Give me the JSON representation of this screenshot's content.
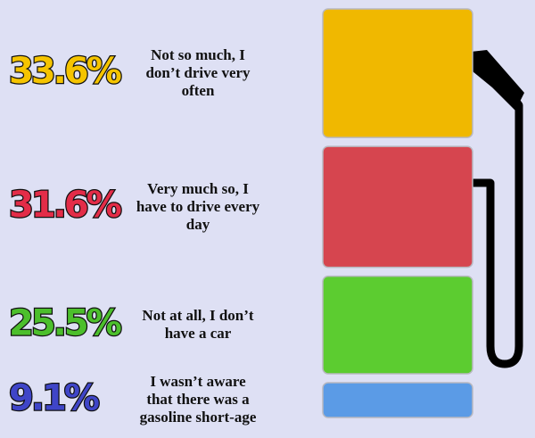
{
  "chart_data": {
    "type": "bar",
    "categories": [
      "Not so much, I don’t drive very often",
      "Very much so, I have to drive every day",
      "Not at all, I don’t have a car",
      "I wasn’t aware that there was a gasoline short-age"
    ],
    "values": [
      33.6,
      31.6,
      25.5,
      9.1
    ],
    "value_labels": [
      "33.6%",
      "31.6%",
      "25.5%",
      "9.1%"
    ],
    "colors": [
      "#f0b800",
      "#d6454f",
      "#5ccc30",
      "#5b9be6"
    ],
    "label_colors": [
      "#f5c400",
      "#e32c48",
      "#4cbf2c",
      "#3f45c8"
    ]
  }
}
